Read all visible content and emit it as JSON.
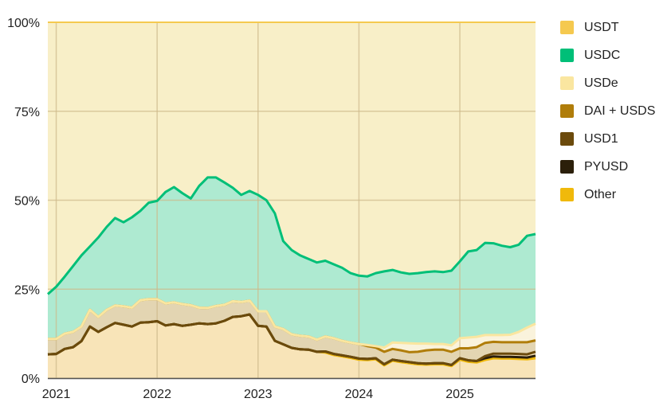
{
  "chart_data": {
    "type": "area",
    "stacked": "percent",
    "title": "",
    "xlabel": "",
    "ylabel": "",
    "ylim": [
      0,
      100
    ],
    "y_ticks": [
      "0%",
      "25%",
      "50%",
      "75%",
      "100%"
    ],
    "y_tick_values": [
      0,
      25,
      50,
      75,
      100
    ],
    "x_ticks": [
      "2021",
      "2022",
      "2023",
      "2024",
      "2025"
    ],
    "x_tick_values": [
      "2021-01",
      "2022-01",
      "2023-01",
      "2024-01",
      "2025-01"
    ],
    "grid": true,
    "legend_position": "right",
    "x": [
      "2020-12",
      "2021-01",
      "2021-02",
      "2021-03",
      "2021-04",
      "2021-05",
      "2021-06",
      "2021-07",
      "2021-08",
      "2021-09",
      "2021-10",
      "2021-11",
      "2021-12",
      "2022-01",
      "2022-02",
      "2022-03",
      "2022-04",
      "2022-05",
      "2022-06",
      "2022-07",
      "2022-08",
      "2022-09",
      "2022-10",
      "2022-11",
      "2022-12",
      "2023-01",
      "2023-02",
      "2023-03",
      "2023-04",
      "2023-05",
      "2023-06",
      "2023-07",
      "2023-08",
      "2023-09",
      "2023-10",
      "2023-11",
      "2023-12",
      "2024-01",
      "2024-02",
      "2024-03",
      "2024-04",
      "2024-05",
      "2024-06",
      "2024-07",
      "2024-08",
      "2024-09",
      "2024-10",
      "2024-11",
      "2024-12",
      "2025-01",
      "2025-02",
      "2025-03",
      "2025-04",
      "2025-05",
      "2025-06",
      "2025-07",
      "2025-08",
      "2025-09",
      "2025-10"
    ],
    "series": [
      {
        "name": "Other",
        "color": "#f0b90b",
        "fill": "#f8e4b8",
        "values": [
          6.7,
          6.8,
          8.2,
          8.7,
          10.4,
          14.5,
          13.0,
          14.3,
          15.5,
          15.0,
          14.5,
          15.6,
          15.7,
          16.0,
          14.8,
          15.2,
          14.7,
          15.0,
          15.4,
          15.2,
          15.4,
          16.1,
          17.2,
          17.4,
          17.9,
          14.7,
          14.5,
          10.5,
          9.5,
          8.5,
          8.1,
          8.0,
          7.4,
          7.2,
          6.5,
          6.1,
          5.7,
          5.2,
          5.1,
          5.3,
          3.6,
          4.9,
          4.5,
          4.2,
          3.9,
          3.8,
          3.9,
          3.9,
          3.4,
          5.2,
          4.6,
          4.4,
          5.1,
          5.6,
          5.5,
          5.5,
          5.4,
          5.3,
          5.6
        ]
      },
      {
        "name": "PYUSD",
        "color": "#2b1f0a",
        "fill": "#f8e4b8",
        "values": [
          0,
          0,
          0,
          0,
          0,
          0,
          0,
          0,
          0,
          0,
          0,
          0,
          0,
          0,
          0,
          0,
          0,
          0,
          0,
          0,
          0,
          0,
          0,
          0,
          0,
          0,
          0,
          0,
          0,
          0,
          0,
          0,
          0,
          0.3,
          0.3,
          0.3,
          0.3,
          0.3,
          0.3,
          0.3,
          0.3,
          0.3,
          0.3,
          0.3,
          0.3,
          0.3,
          0.3,
          0.3,
          0.3,
          0.4,
          0.4,
          0.4,
          0.5,
          0.5,
          0.5,
          0.5,
          0.5,
          0.5,
          0.7
        ]
      },
      {
        "name": "USD1",
        "color": "#6b4a0c",
        "fill": "#f8e4b8",
        "values": [
          0,
          0,
          0,
          0,
          0,
          0,
          0,
          0,
          0,
          0,
          0,
          0,
          0,
          0,
          0,
          0,
          0,
          0,
          0,
          0,
          0,
          0,
          0,
          0,
          0,
          0,
          0,
          0,
          0,
          0,
          0,
          0,
          0,
          0,
          0,
          0,
          0,
          0,
          0,
          0,
          0,
          0,
          0,
          0,
          0,
          0,
          0,
          0,
          0,
          0,
          0,
          0,
          0.6,
          0.8,
          0.9,
          0.9,
          0.9,
          0.9,
          1.1
        ]
      },
      {
        "name": "DAI + USDS",
        "color": "#b07d0a",
        "fill": "#e3d5b2",
        "values": [
          4.3,
          4.2,
          4.3,
          4.3,
          4.1,
          4.7,
          4.2,
          4.9,
          4.9,
          5.2,
          5.3,
          6.3,
          6.5,
          6.2,
          6.2,
          6.1,
          6.1,
          5.5,
          4.4,
          4.5,
          4.9,
          4.5,
          4.4,
          4.0,
          3.9,
          4.1,
          4.3,
          4.0,
          4.3,
          3.8,
          3.8,
          3.7,
          3.4,
          4.2,
          4.4,
          4.1,
          4.0,
          4.1,
          3.6,
          3.0,
          3.5,
          3.0,
          3.0,
          2.8,
          3.2,
          3.7,
          3.8,
          3.8,
          3.7,
          2.8,
          3.4,
          3.9,
          3.7,
          3.3,
          3.2,
          3.2,
          3.3,
          3.4,
          3.2
        ]
      },
      {
        "name": "USDe",
        "color": "#fae6a0",
        "fill": "#faf3dc",
        "values": [
          0,
          0,
          0,
          0,
          0,
          0,
          0,
          0,
          0,
          0,
          0,
          0,
          0,
          0,
          0,
          0,
          0,
          0,
          0,
          0,
          0,
          0,
          0,
          0,
          0,
          0,
          0,
          0,
          0,
          0,
          0,
          0,
          0,
          0,
          0,
          0,
          0,
          0,
          0.3,
          0.4,
          1.2,
          1.8,
          2.1,
          2.5,
          2.3,
          1.9,
          1.6,
          1.6,
          1.8,
          2.8,
          3.0,
          2.9,
          2.2,
          1.9,
          2.0,
          2.1,
          2.9,
          4.1,
          4.7
        ]
      },
      {
        "name": "USDC",
        "color": "#00bf78",
        "fill": "#aeead1",
        "values": [
          12.6,
          14.7,
          16.0,
          18.5,
          20.0,
          17.8,
          22.3,
          23.3,
          24.6,
          23.6,
          25.4,
          25.1,
          27.1,
          27.6,
          31.3,
          32.4,
          31.2,
          30.0,
          34.2,
          36.7,
          36.1,
          34.4,
          31.9,
          30.1,
          30.8,
          32.7,
          31.2,
          31.8,
          24.7,
          23.7,
          22.6,
          21.8,
          21.7,
          21.3,
          20.8,
          20.5,
          19.5,
          19.2,
          19.3,
          20.5,
          21.4,
          20.4,
          19.8,
          19.5,
          19.8,
          20.1,
          20.4,
          20.2,
          21.0,
          21.6,
          24.2,
          24.4,
          25.9,
          25.8,
          25.1,
          24.6,
          24.5,
          25.8,
          25.2
        ]
      },
      {
        "name": "USDT",
        "color": "#f5c94f",
        "fill": "#f8efc8",
        "values": [
          76.4,
          74.3,
          71.5,
          68.5,
          65.5,
          63.0,
          60.5,
          57.5,
          55.0,
          56.2,
          54.8,
          53.0,
          50.7,
          50.2,
          47.7,
          46.3,
          48.0,
          49.5,
          46.0,
          43.6,
          43.6,
          45.0,
          46.5,
          48.5,
          47.4,
          48.5,
          50.0,
          53.7,
          61.5,
          64.0,
          65.5,
          66.5,
          67.5,
          67.0,
          68.0,
          69.0,
          70.5,
          71.2,
          71.4,
          70.5,
          70.0,
          69.6,
          70.3,
          70.7,
          70.5,
          70.2,
          70.0,
          70.2,
          69.8,
          67.2,
          64.4,
          64.0,
          62.0,
          62.1,
          62.8,
          63.2,
          62.5,
          60.0,
          59.5
        ]
      }
    ],
    "legend": [
      "USDT",
      "USDC",
      "USDe",
      "DAI + USDS",
      "USD1",
      "PYUSD",
      "Other"
    ]
  }
}
